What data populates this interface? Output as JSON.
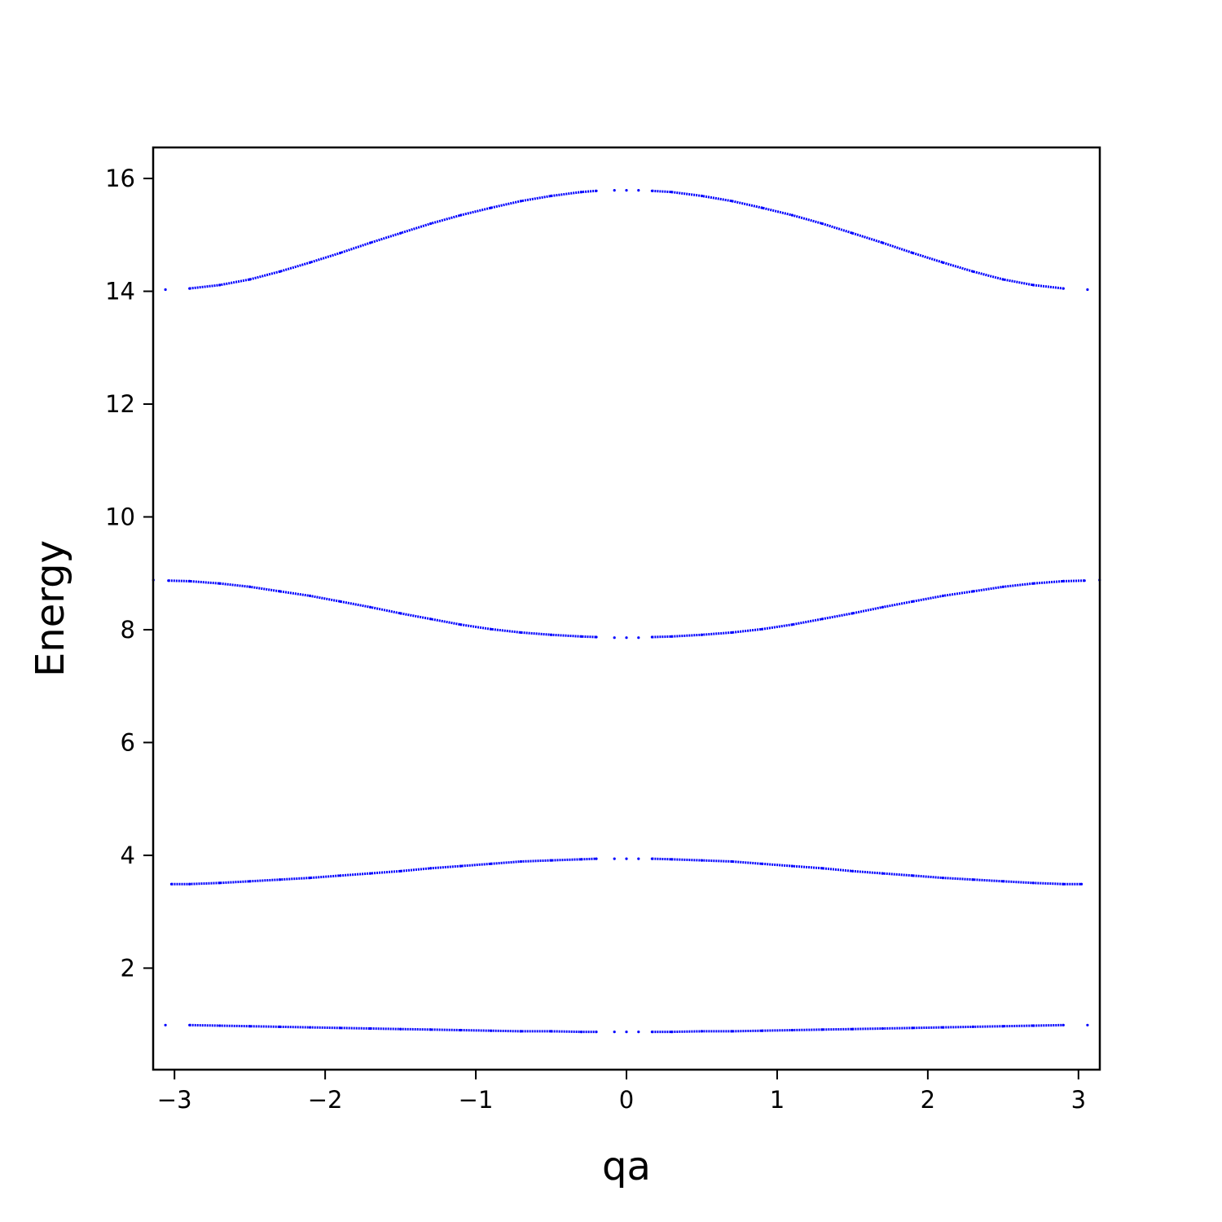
{
  "chart_data": {
    "type": "scatter",
    "xlabel": "qa",
    "ylabel": "Energy",
    "xlim": [
      -3.1416,
      3.1416
    ],
    "ylim": [
      0.2,
      16.55
    ],
    "xticks": [
      -3,
      -2,
      -1,
      0,
      1,
      2,
      3
    ],
    "xtick_labels": [
      "−3",
      "−2",
      "−1",
      "0",
      "1",
      "2",
      "3"
    ],
    "yticks": [
      2,
      4,
      6,
      8,
      10,
      12,
      14,
      16
    ],
    "ytick_labels": [
      "2",
      "4",
      "6",
      "8",
      "10",
      "12",
      "14",
      "16"
    ],
    "grid": false,
    "marker": "dot",
    "color": "#0000ff",
    "series": [
      {
        "band": 1,
        "x": [
          -3.06,
          -2.9,
          -2.7,
          -2.5,
          -2.3,
          -2.1,
          -1.9,
          -1.7,
          -1.5,
          -1.3,
          -1.1,
          -0.9,
          -0.7,
          -0.5,
          -0.3,
          -0.2,
          -0.08,
          0.0,
          0.08,
          0.17,
          0.3,
          0.5,
          0.7,
          0.9,
          1.1,
          1.3,
          1.5,
          1.7,
          1.9,
          2.1,
          2.3,
          2.5,
          2.7,
          2.9,
          3.06
        ],
        "y": [
          0.99,
          0.99,
          0.98,
          0.97,
          0.96,
          0.95,
          0.94,
          0.93,
          0.92,
          0.91,
          0.9,
          0.89,
          0.88,
          0.88,
          0.87,
          0.87,
          0.87,
          0.87,
          0.87,
          0.87,
          0.87,
          0.88,
          0.88,
          0.89,
          0.9,
          0.91,
          0.92,
          0.93,
          0.94,
          0.95,
          0.96,
          0.97,
          0.98,
          0.99,
          0.99
        ]
      },
      {
        "band": 2,
        "x": [
          -3.02,
          -2.9,
          -2.7,
          -2.5,
          -2.3,
          -2.1,
          -1.9,
          -1.7,
          -1.5,
          -1.3,
          -1.1,
          -0.9,
          -0.7,
          -0.5,
          -0.3,
          -0.2,
          -0.08,
          0.0,
          0.08,
          0.17,
          0.3,
          0.5,
          0.7,
          0.9,
          1.1,
          1.3,
          1.5,
          1.7,
          1.9,
          2.1,
          2.3,
          2.5,
          2.7,
          2.9,
          3.02
        ],
        "y": [
          3.49,
          3.49,
          3.51,
          3.54,
          3.57,
          3.6,
          3.64,
          3.68,
          3.72,
          3.77,
          3.81,
          3.85,
          3.89,
          3.91,
          3.93,
          3.94,
          3.94,
          3.94,
          3.94,
          3.94,
          3.93,
          3.91,
          3.89,
          3.85,
          3.81,
          3.77,
          3.72,
          3.68,
          3.64,
          3.6,
          3.57,
          3.54,
          3.51,
          3.49,
          3.49
        ]
      },
      {
        "band": 3,
        "x": [
          -3.14,
          -3.04,
          -2.9,
          -2.7,
          -2.5,
          -2.3,
          -2.1,
          -1.9,
          -1.7,
          -1.5,
          -1.3,
          -1.1,
          -0.9,
          -0.7,
          -0.5,
          -0.3,
          -0.2,
          -0.08,
          0.0,
          0.08,
          0.17,
          0.3,
          0.5,
          0.7,
          0.9,
          1.1,
          1.3,
          1.5,
          1.7,
          1.9,
          2.1,
          2.3,
          2.5,
          2.7,
          2.9,
          3.04,
          3.14
        ],
        "y": [
          8.88,
          8.87,
          8.86,
          8.82,
          8.76,
          8.68,
          8.6,
          8.5,
          8.4,
          8.29,
          8.19,
          8.09,
          8.01,
          7.95,
          7.91,
          7.88,
          7.87,
          7.86,
          7.86,
          7.86,
          7.87,
          7.88,
          7.91,
          7.95,
          8.01,
          8.09,
          8.19,
          8.29,
          8.4,
          8.5,
          8.6,
          8.68,
          8.76,
          8.82,
          8.86,
          8.87,
          8.88
        ]
      },
      {
        "band": 4,
        "x": [
          -3.06,
          -2.9,
          -2.7,
          -2.5,
          -2.3,
          -2.1,
          -1.9,
          -1.7,
          -1.5,
          -1.3,
          -1.1,
          -0.9,
          -0.7,
          -0.5,
          -0.3,
          -0.2,
          -0.08,
          0.0,
          0.08,
          0.17,
          0.3,
          0.5,
          0.7,
          0.9,
          1.1,
          1.3,
          1.5,
          1.7,
          1.9,
          2.1,
          2.3,
          2.5,
          2.7,
          2.9,
          3.06
        ],
        "y": [
          14.03,
          14.05,
          14.11,
          14.21,
          14.35,
          14.51,
          14.68,
          14.86,
          15.03,
          15.2,
          15.35,
          15.48,
          15.6,
          15.69,
          15.76,
          15.78,
          15.79,
          15.79,
          15.79,
          15.78,
          15.76,
          15.69,
          15.6,
          15.48,
          15.35,
          15.2,
          15.03,
          14.86,
          14.68,
          14.51,
          14.35,
          14.21,
          14.11,
          14.05,
          14.03
        ]
      }
    ]
  }
}
